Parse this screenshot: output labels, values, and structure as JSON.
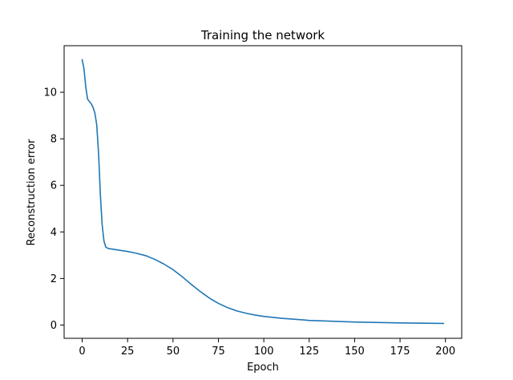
{
  "chart_data": {
    "type": "line",
    "title": "Training the network",
    "xlabel": "Epoch",
    "ylabel": "Reconstruction error",
    "xlim": [
      -9.95,
      208.95
    ],
    "ylim": [
      -0.57,
      12.0
    ],
    "x_ticks": [
      0,
      25,
      50,
      75,
      100,
      125,
      150,
      175,
      200
    ],
    "y_ticks": [
      0,
      2,
      4,
      6,
      8,
      10
    ],
    "x_tick_labels": [
      "0",
      "25",
      "50",
      "75",
      "100",
      "125",
      "150",
      "175",
      "200"
    ],
    "y_tick_labels": [
      "0",
      "2",
      "4",
      "6",
      "8",
      "10"
    ],
    "grid": false,
    "legend": "none",
    "series": [
      {
        "color": "#1f77b4",
        "x": [
          0,
          1,
          2,
          3,
          4,
          5,
          6,
          7,
          8,
          9,
          10,
          11,
          12,
          13,
          14,
          15,
          20,
          25,
          30,
          35,
          40,
          45,
          50,
          55,
          60,
          65,
          70,
          75,
          80,
          85,
          90,
          95,
          100,
          110,
          125,
          150,
          175,
          199
        ],
        "y": [
          11.4,
          11.0,
          10.2,
          9.7,
          9.6,
          9.5,
          9.35,
          9.1,
          8.6,
          7.4,
          5.6,
          4.3,
          3.6,
          3.35,
          3.3,
          3.28,
          3.22,
          3.16,
          3.08,
          2.98,
          2.82,
          2.62,
          2.38,
          2.08,
          1.75,
          1.44,
          1.16,
          0.93,
          0.75,
          0.61,
          0.51,
          0.43,
          0.37,
          0.29,
          0.2,
          0.13,
          0.09,
          0.07
        ]
      }
    ]
  }
}
